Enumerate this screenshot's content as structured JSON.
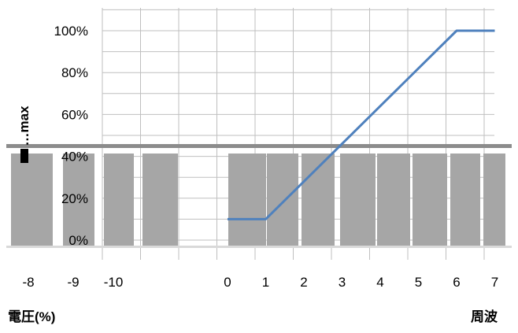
{
  "chart_data": {
    "type": "line",
    "title": "",
    "ylabel": "…max",
    "xlabel_left": "電圧(%)",
    "xlabel_right": "周波",
    "ylim": [
      0,
      100
    ],
    "y_ticks": [
      "0%",
      "20%",
      "40%",
      "60%",
      "80%",
      "100%"
    ],
    "x_ticks": [
      "-8",
      "-9",
      "-10",
      "0",
      "1",
      "2",
      "3",
      "4",
      "5",
      "6",
      "7"
    ],
    "grid": true,
    "series": [
      {
        "color": "#4f81bd",
        "x": [
          0,
          1,
          6,
          7
        ],
        "y": [
          10,
          10,
          100,
          100
        ]
      }
    ],
    "overlay": {
      "description": "grey bar panel overlapping lower half",
      "color": "#a6a6a6"
    }
  }
}
